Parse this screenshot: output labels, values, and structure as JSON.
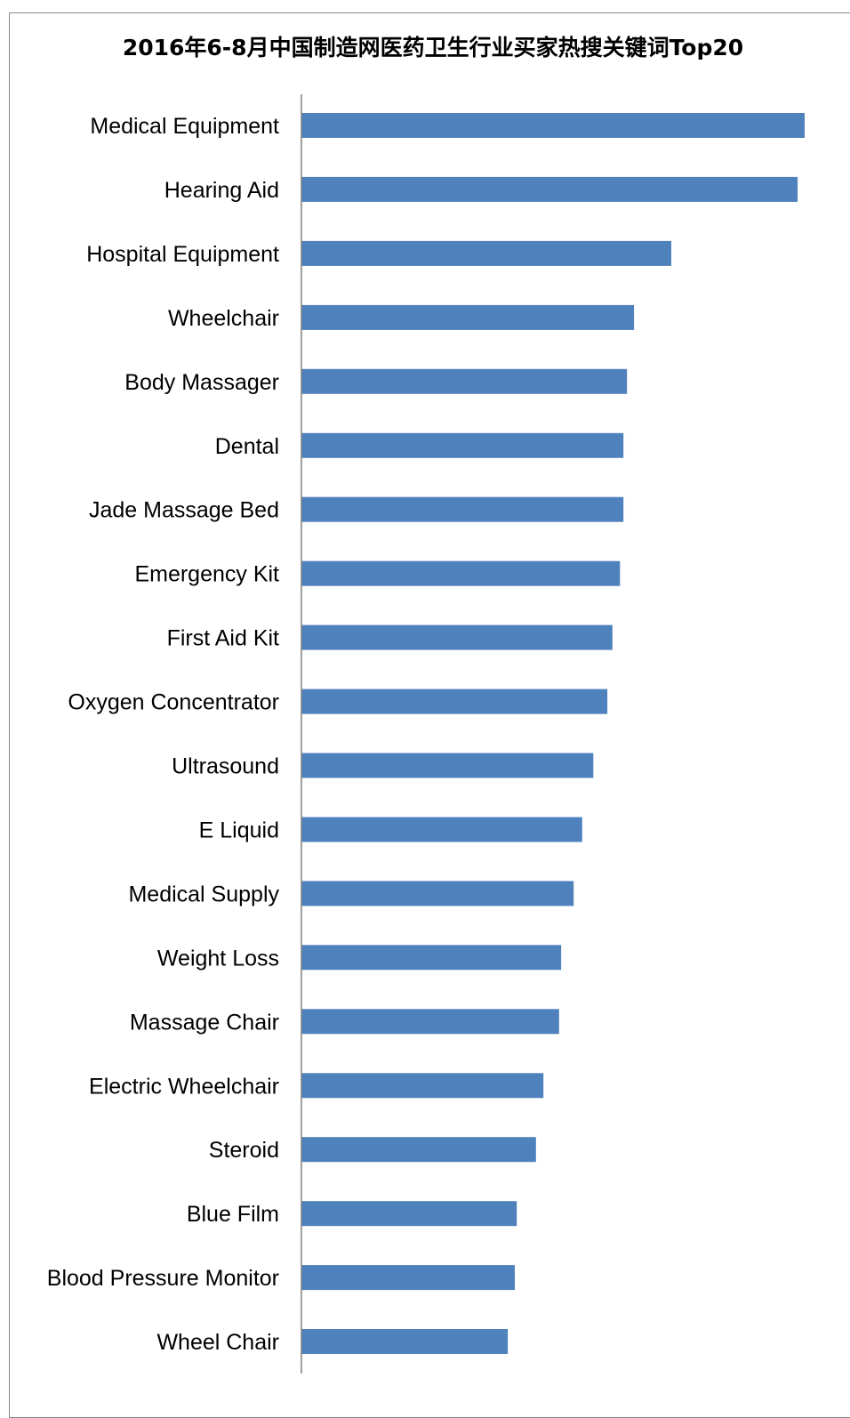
{
  "chart_data": {
    "type": "bar",
    "orientation": "horizontal",
    "title": "2016年6-8月中国制造网医药卫生行业买家热搜关键词Top20",
    "categories": [
      "Medical Equipment",
      "Hearing Aid",
      "Hospital Equipment",
      "Wheelchair",
      "Body Massager",
      "Dental",
      "Jade Massage Bed",
      "Emergency Kit",
      "First Aid Kit",
      "Oxygen Concentrator",
      "Ultrasound",
      "E Liquid",
      "Medical Supply",
      "Weight Loss",
      "Massage Chair",
      "Electric Wheelchair",
      "Steroid",
      "Blue Film",
      "Blood Pressure Monitor",
      "Wheel Chair"
    ],
    "values": [
      100,
      98.6,
      73.5,
      66.1,
      64.7,
      64.0,
      64.0,
      63.3,
      61.8,
      60.8,
      58.0,
      55.8,
      54.1,
      51.6,
      51.2,
      48.1,
      46.6,
      42.8,
      42.4,
      41.0
    ],
    "xlim": [
      0,
      100
    ],
    "grid": false,
    "legend": "none",
    "bar_color": "#4f81bd",
    "axis_color": "#808080"
  }
}
